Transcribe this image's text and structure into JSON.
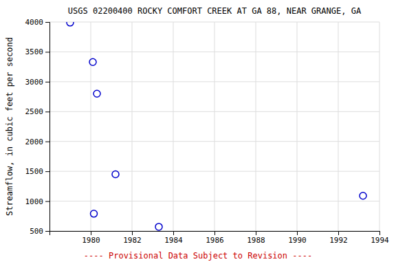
{
  "chart_data": {
    "type": "scatter",
    "title": "USGS 02200400 ROCKY COMFORT CREEK AT GA 88, NEAR GRANGE, GA",
    "ylabel": "Streamflow, in cubic feet per second",
    "x": [
      1979.0,
      1980.1,
      1980.3,
      1981.2,
      1980.15,
      1983.3,
      1993.2
    ],
    "values": [
      3990,
      3330,
      2800,
      1450,
      790,
      570,
      1090
    ],
    "xlim": [
      1978,
      1994
    ],
    "ylim": [
      500,
      4000
    ],
    "xticks": [
      1980,
      1982,
      1984,
      1986,
      1988,
      1990,
      1992,
      1994
    ],
    "yticks": [
      500,
      1000,
      1500,
      2000,
      2500,
      3000,
      3500,
      4000
    ],
    "color": "#0000cc",
    "marker": "circle",
    "grid": true,
    "annotations": [
      {
        "text": "---- Provisional Data Subject to Revision ----",
        "color": "#cc0000"
      }
    ]
  }
}
